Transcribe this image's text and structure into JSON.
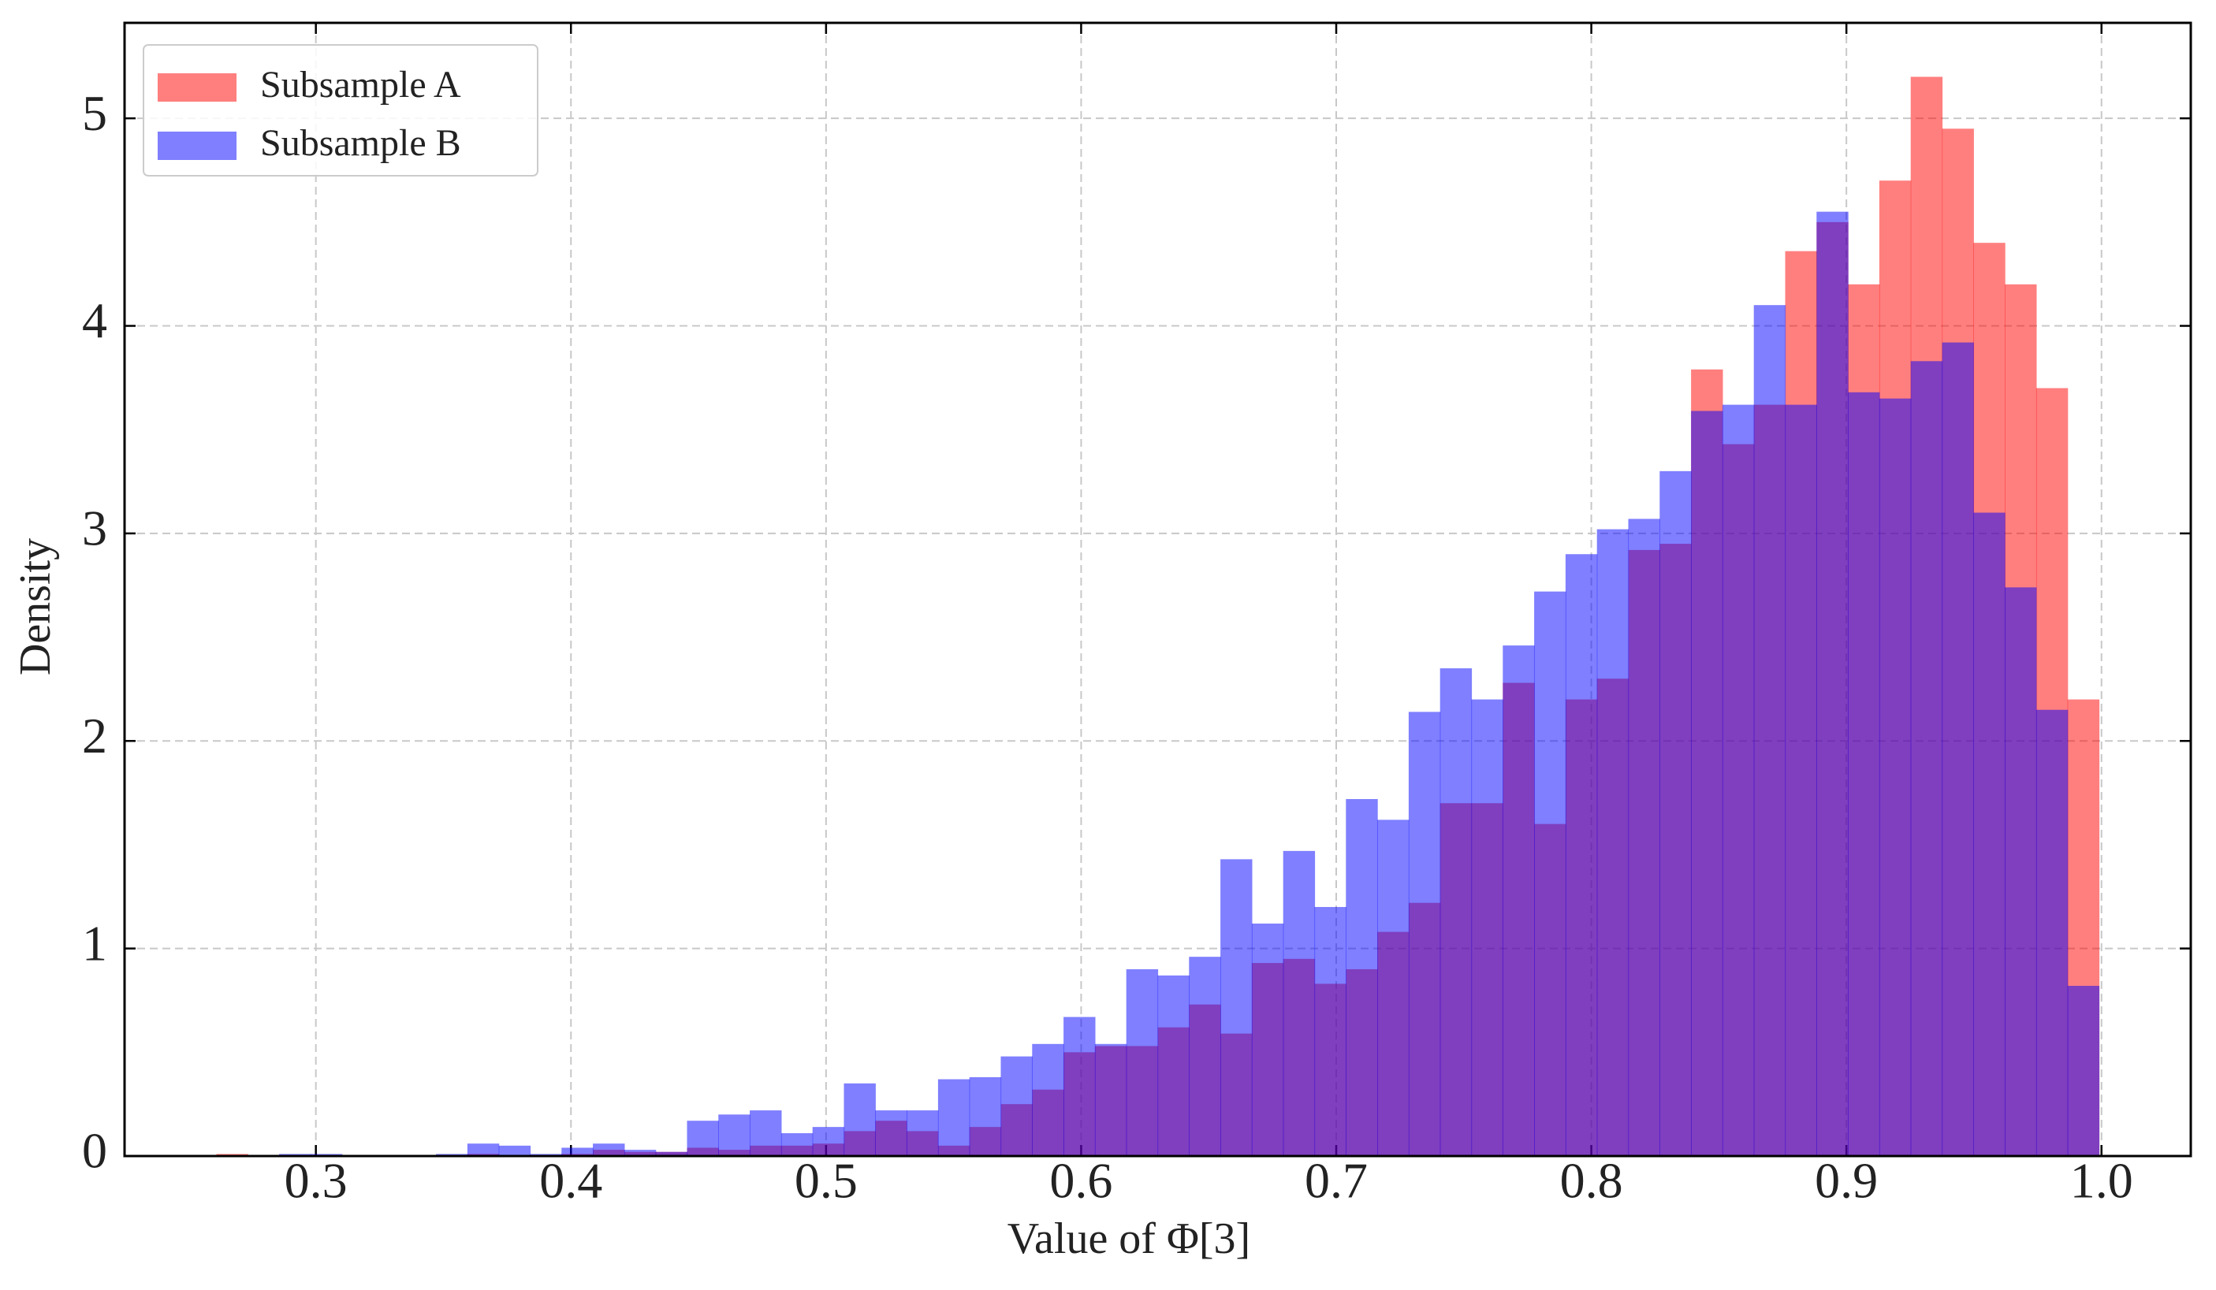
{
  "chart_data": {
    "type": "histogram",
    "xlabel": "Value of Φ[3]",
    "ylabel": "Density",
    "bins": [
      0.261,
      0.2733,
      0.2856,
      0.2979,
      0.3102,
      0.3225,
      0.3348,
      0.3471,
      0.3594,
      0.3717,
      0.384,
      0.3963,
      0.4086,
      0.4209,
      0.4332,
      0.4455,
      0.4578,
      0.4701,
      0.4824,
      0.4947,
      0.507,
      0.5193,
      0.5316,
      0.5439,
      0.5562,
      0.5685,
      0.5808,
      0.5931,
      0.6054,
      0.6177,
      0.63,
      0.6423,
      0.6546,
      0.6669,
      0.6792,
      0.6915,
      0.7038,
      0.7161,
      0.7284,
      0.7407,
      0.753,
      0.7653,
      0.7776,
      0.7899,
      0.8022,
      0.8145,
      0.8268,
      0.8391,
      0.8514,
      0.8637,
      0.876,
      0.8883,
      0.9006,
      0.9129,
      0.9252,
      0.9375,
      0.9498,
      0.9621,
      0.9744,
      0.9867,
      0.999
    ],
    "series": [
      {
        "name": "Subsample A",
        "color": "#ff0000",
        "alpha": 0.5,
        "values": [
          0.01,
          0,
          0,
          0,
          0,
          0,
          0,
          0,
          0.01,
          0,
          0,
          0.01,
          0.03,
          0.02,
          0.02,
          0.04,
          0.03,
          0.05,
          0.05,
          0.06,
          0.12,
          0.17,
          0.12,
          0.05,
          0.14,
          0.25,
          0.32,
          0.5,
          0.53,
          0.53,
          0.62,
          0.73,
          0.59,
          0.93,
          0.95,
          0.83,
          0.9,
          1.08,
          1.22,
          1.7,
          1.7,
          2.28,
          1.6,
          2.2,
          2.3,
          2.92,
          2.95,
          3.79,
          3.43,
          3.62,
          4.36,
          4.5,
          4.2,
          4.7,
          5.2,
          4.95,
          4.4,
          4.2,
          3.7,
          2.2
        ]
      },
      {
        "name": "Subsample B",
        "color": "#0000ff",
        "alpha": 0.5,
        "values": [
          0,
          0,
          0.01,
          0.01,
          0,
          0,
          0,
          0.01,
          0.06,
          0.05,
          0.01,
          0.04,
          0.06,
          0.03,
          0.02,
          0.17,
          0.2,
          0.22,
          0.11,
          0.14,
          0.35,
          0.22,
          0.22,
          0.37,
          0.38,
          0.48,
          0.54,
          0.67,
          0.54,
          0.9,
          0.87,
          0.96,
          1.43,
          1.12,
          1.47,
          1.2,
          1.72,
          1.62,
          2.14,
          2.35,
          2.2,
          2.46,
          2.72,
          2.9,
          3.02,
          3.07,
          3.3,
          3.59,
          3.62,
          4.1,
          3.62,
          4.55,
          3.68,
          3.65,
          3.83,
          3.92,
          3.1,
          2.74,
          2.15,
          0.82
        ]
      }
    ],
    "xlim": [
      0.225,
      1.035
    ],
    "ylim": [
      0,
      5.46
    ],
    "xticks": [
      0.3,
      0.4,
      0.5,
      0.6,
      0.7,
      0.8,
      0.9,
      {
        "value": 1,
        "label": "1.0"
      }
    ],
    "yticks": [
      0,
      1,
      2,
      3,
      4,
      5
    ],
    "grid": true,
    "legend": "upper left"
  }
}
